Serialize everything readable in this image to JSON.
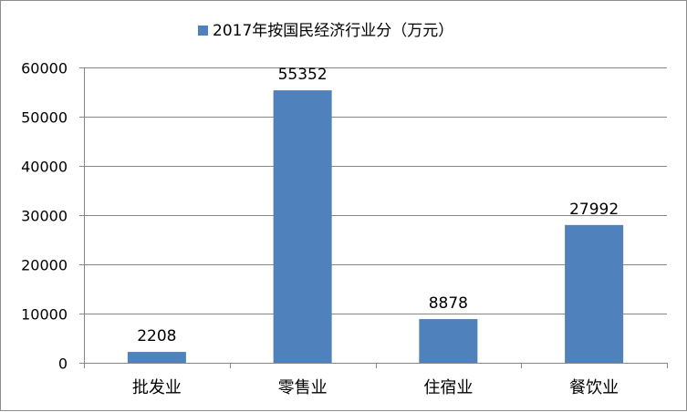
{
  "chart_data": {
    "type": "bar",
    "categories": [
      "批发业",
      "零售业",
      "住宿业",
      "餐饮业"
    ],
    "series": [
      {
        "name": "2017年按国民经济行业分（万元）",
        "values": [
          2208,
          55352,
          8878,
          27992
        ]
      }
    ],
    "data_labels": [
      "2208",
      "55352",
      "8878",
      "27992"
    ],
    "ylim": [
      0,
      60000
    ],
    "yticks": [
      0,
      10000,
      20000,
      30000,
      40000,
      50000,
      60000
    ],
    "ytick_labels": [
      "0",
      "10000",
      "20000",
      "30000",
      "40000",
      "50000",
      "60000"
    ],
    "grid": true,
    "legend_position": "top",
    "colors": {
      "bar": "#4f81bd",
      "grid": "#868686",
      "axis": "#868686"
    }
  }
}
